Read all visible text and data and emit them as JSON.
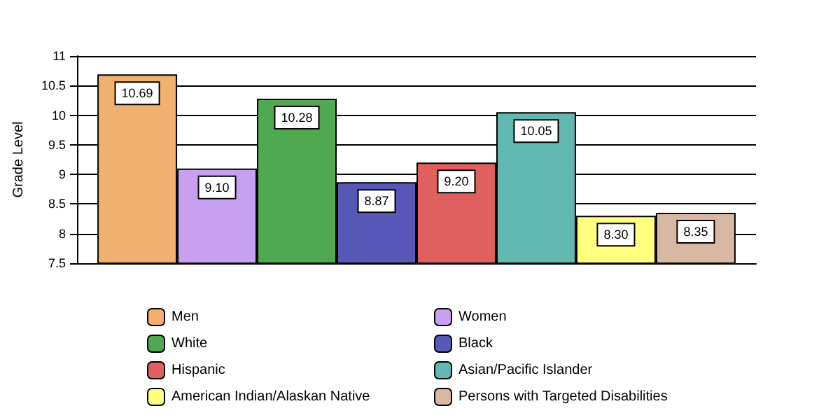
{
  "chart_data": {
    "type": "bar",
    "ylabel": "Grade Level",
    "categories": [
      null
    ],
    "series": [
      {
        "name": "Men",
        "color": "#f0b070",
        "values": [
          10.69
        ],
        "value_labels": [
          "10.69"
        ]
      },
      {
        "name": "Women",
        "color": "#c8a0f0",
        "values": [
          9.1
        ],
        "value_labels": [
          "9.10"
        ]
      },
      {
        "name": "White",
        "color": "#50a850",
        "values": [
          10.28
        ],
        "value_labels": [
          "10.28"
        ]
      },
      {
        "name": "Black",
        "color": "#5858b8",
        "values": [
          8.87
        ],
        "value_labels": [
          "8.87"
        ]
      },
      {
        "name": "Hispanic",
        "color": "#e06060",
        "values": [
          9.2
        ],
        "value_labels": [
          "9.20"
        ]
      },
      {
        "name": "Asian/Pacific Islander",
        "color": "#60b8b0",
        "values": [
          10.05
        ],
        "value_labels": [
          "10.05"
        ]
      },
      {
        "name": "American Indian/Alaskan Native",
        "color": "#ffff80",
        "values": [
          8.3
        ],
        "value_labels": [
          "8.30"
        ]
      },
      {
        "name": "Persons with Targeted Disabilities",
        "color": "#d8b8a0",
        "values": [
          8.35
        ],
        "value_labels": [
          "8.35"
        ]
      }
    ],
    "ylim": [
      7.5,
      11
    ],
    "yticks": [
      7.5,
      8,
      8.5,
      9,
      9.5,
      10,
      10.5,
      11
    ],
    "grid": "y",
    "legend": "bottom"
  }
}
